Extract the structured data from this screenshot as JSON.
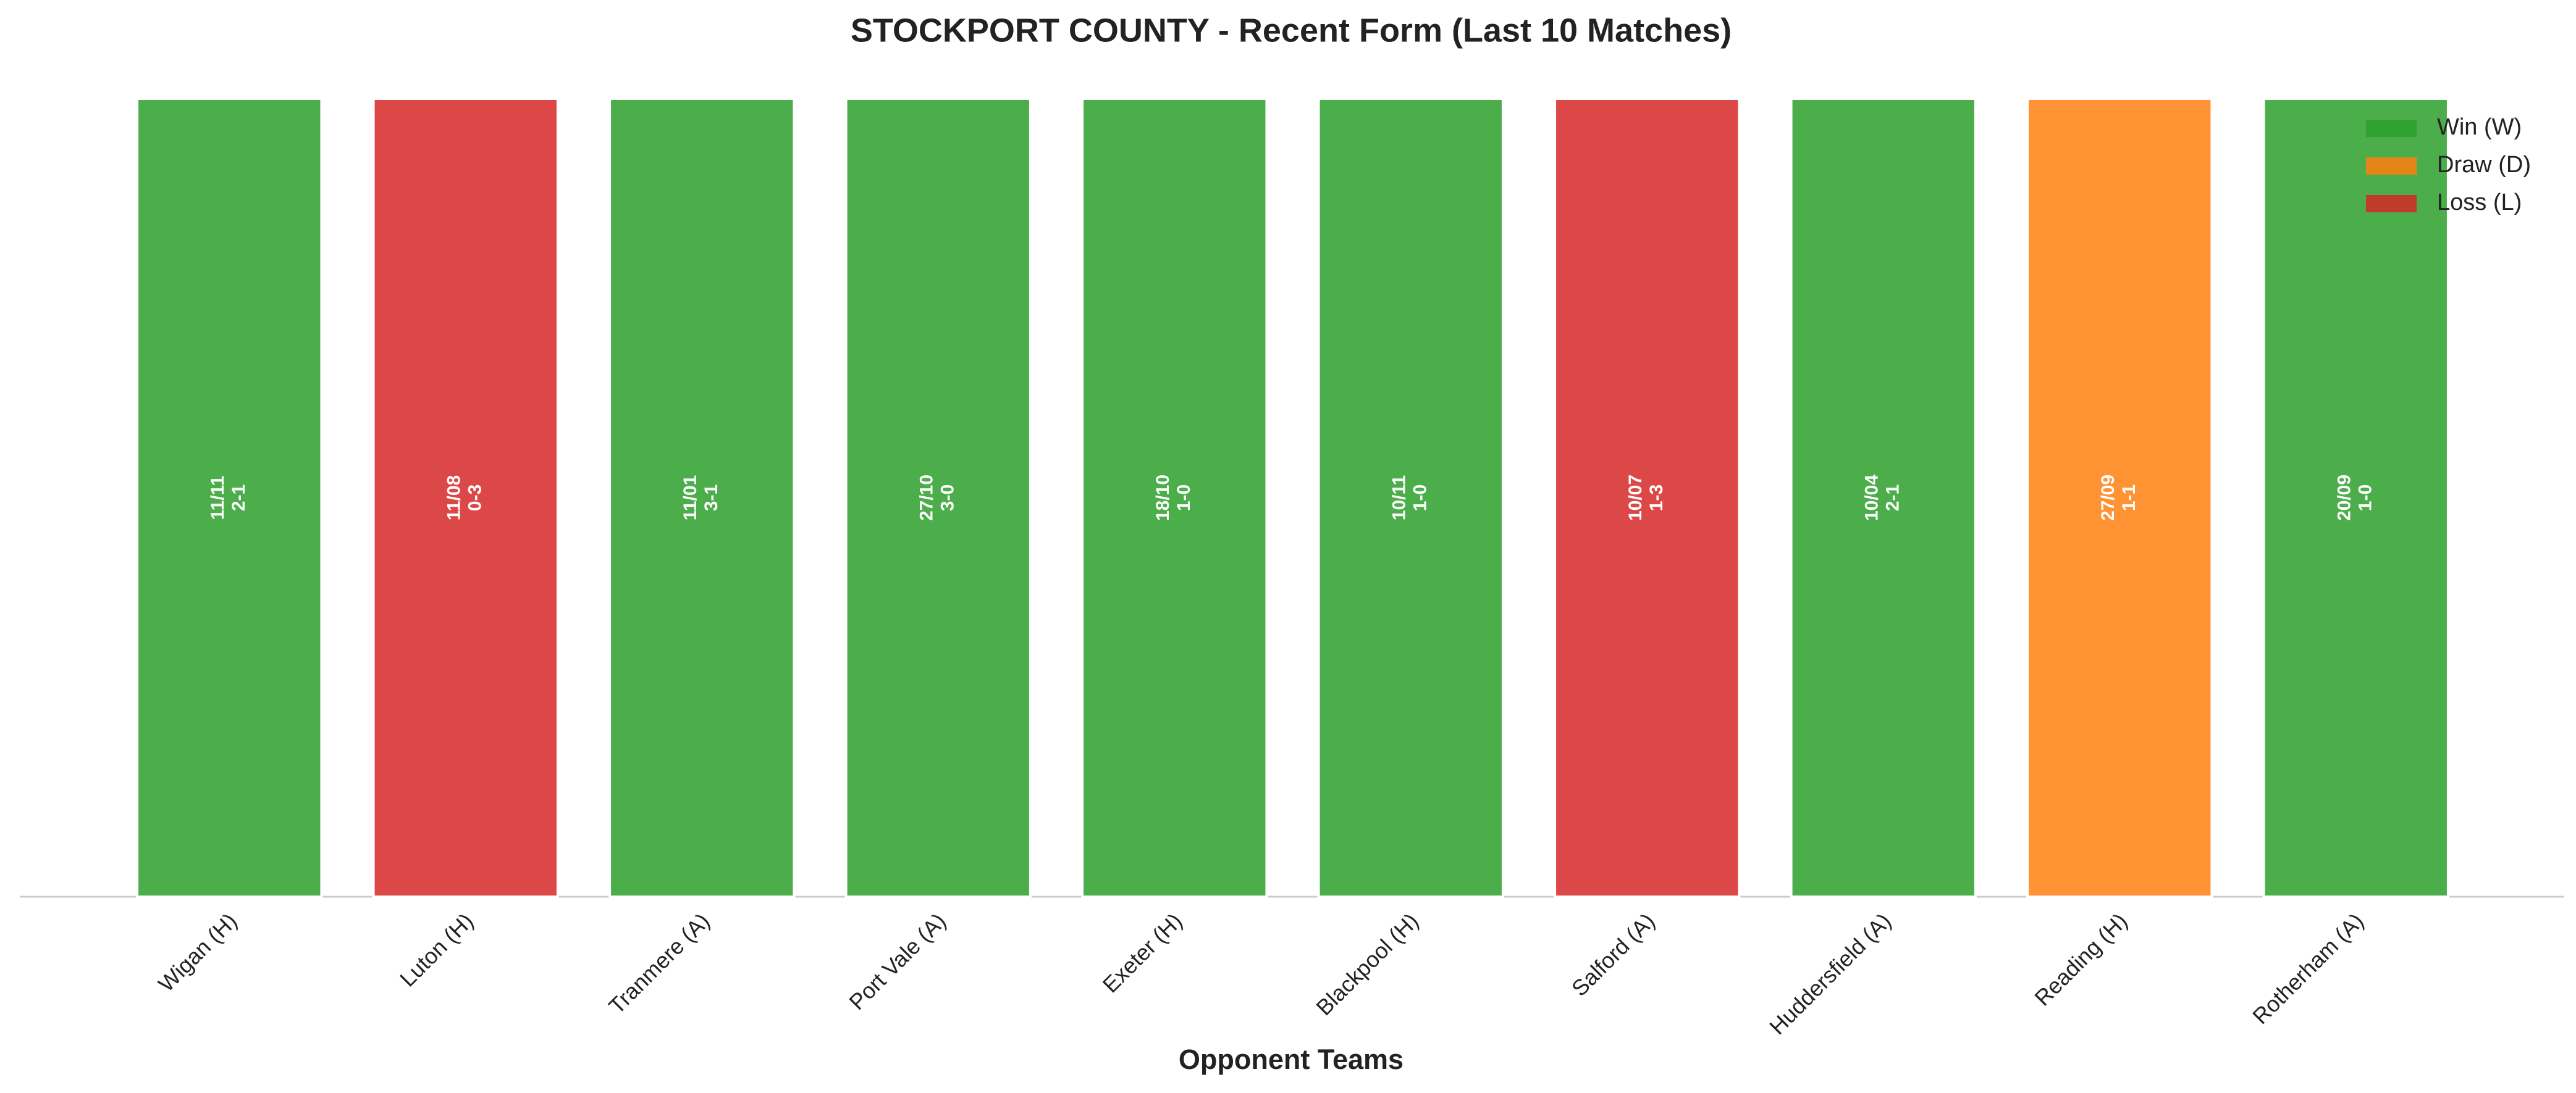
{
  "chart_data": {
    "type": "bar",
    "title": "STOCKPORT COUNTY - Recent Form (Last 10 Matches)",
    "x_label": "Opponent Teams",
    "categories": [
      "Wigan (H)",
      "Luton (H)",
      "Tranmere (A)",
      "Port Vale (A)",
      "Exeter (H)",
      "Blackpool (H)",
      "Salford (A)",
      "Huddersfield (A)",
      "Reading (H)",
      "Rotherham (A)"
    ],
    "values": [
      1,
      1,
      1,
      1,
      1,
      1,
      1,
      1,
      1,
      1
    ],
    "dates": [
      "11/11",
      "11/08",
      "11/01",
      "27/10",
      "18/10",
      "10/11",
      "10/07",
      "10/04",
      "27/09",
      "20/09"
    ],
    "scores": [
      "2-1",
      "0-3",
      "3-1",
      "3-0",
      "1-0",
      "1-0",
      "1-3",
      "2-1",
      "1-1",
      "1-0"
    ],
    "colors": [
      "#2ca02c",
      "#d62728",
      "#2ca02c",
      "#2ca02c",
      "#2ca02c",
      "#2ca02c",
      "#d62728",
      "#2ca02c",
      "#ff7f0e",
      "#2ca02c"
    ],
    "ylim": [
      0,
      1
    ],
    "legend": [
      {
        "name": "Win (W)",
        "color": "#2ca02c"
      },
      {
        "name": "Draw (D)",
        "color": "#ff7f0e"
      },
      {
        "name": "Loss (L)",
        "color": "#d62728"
      }
    ],
    "legend_position": "upper right"
  }
}
